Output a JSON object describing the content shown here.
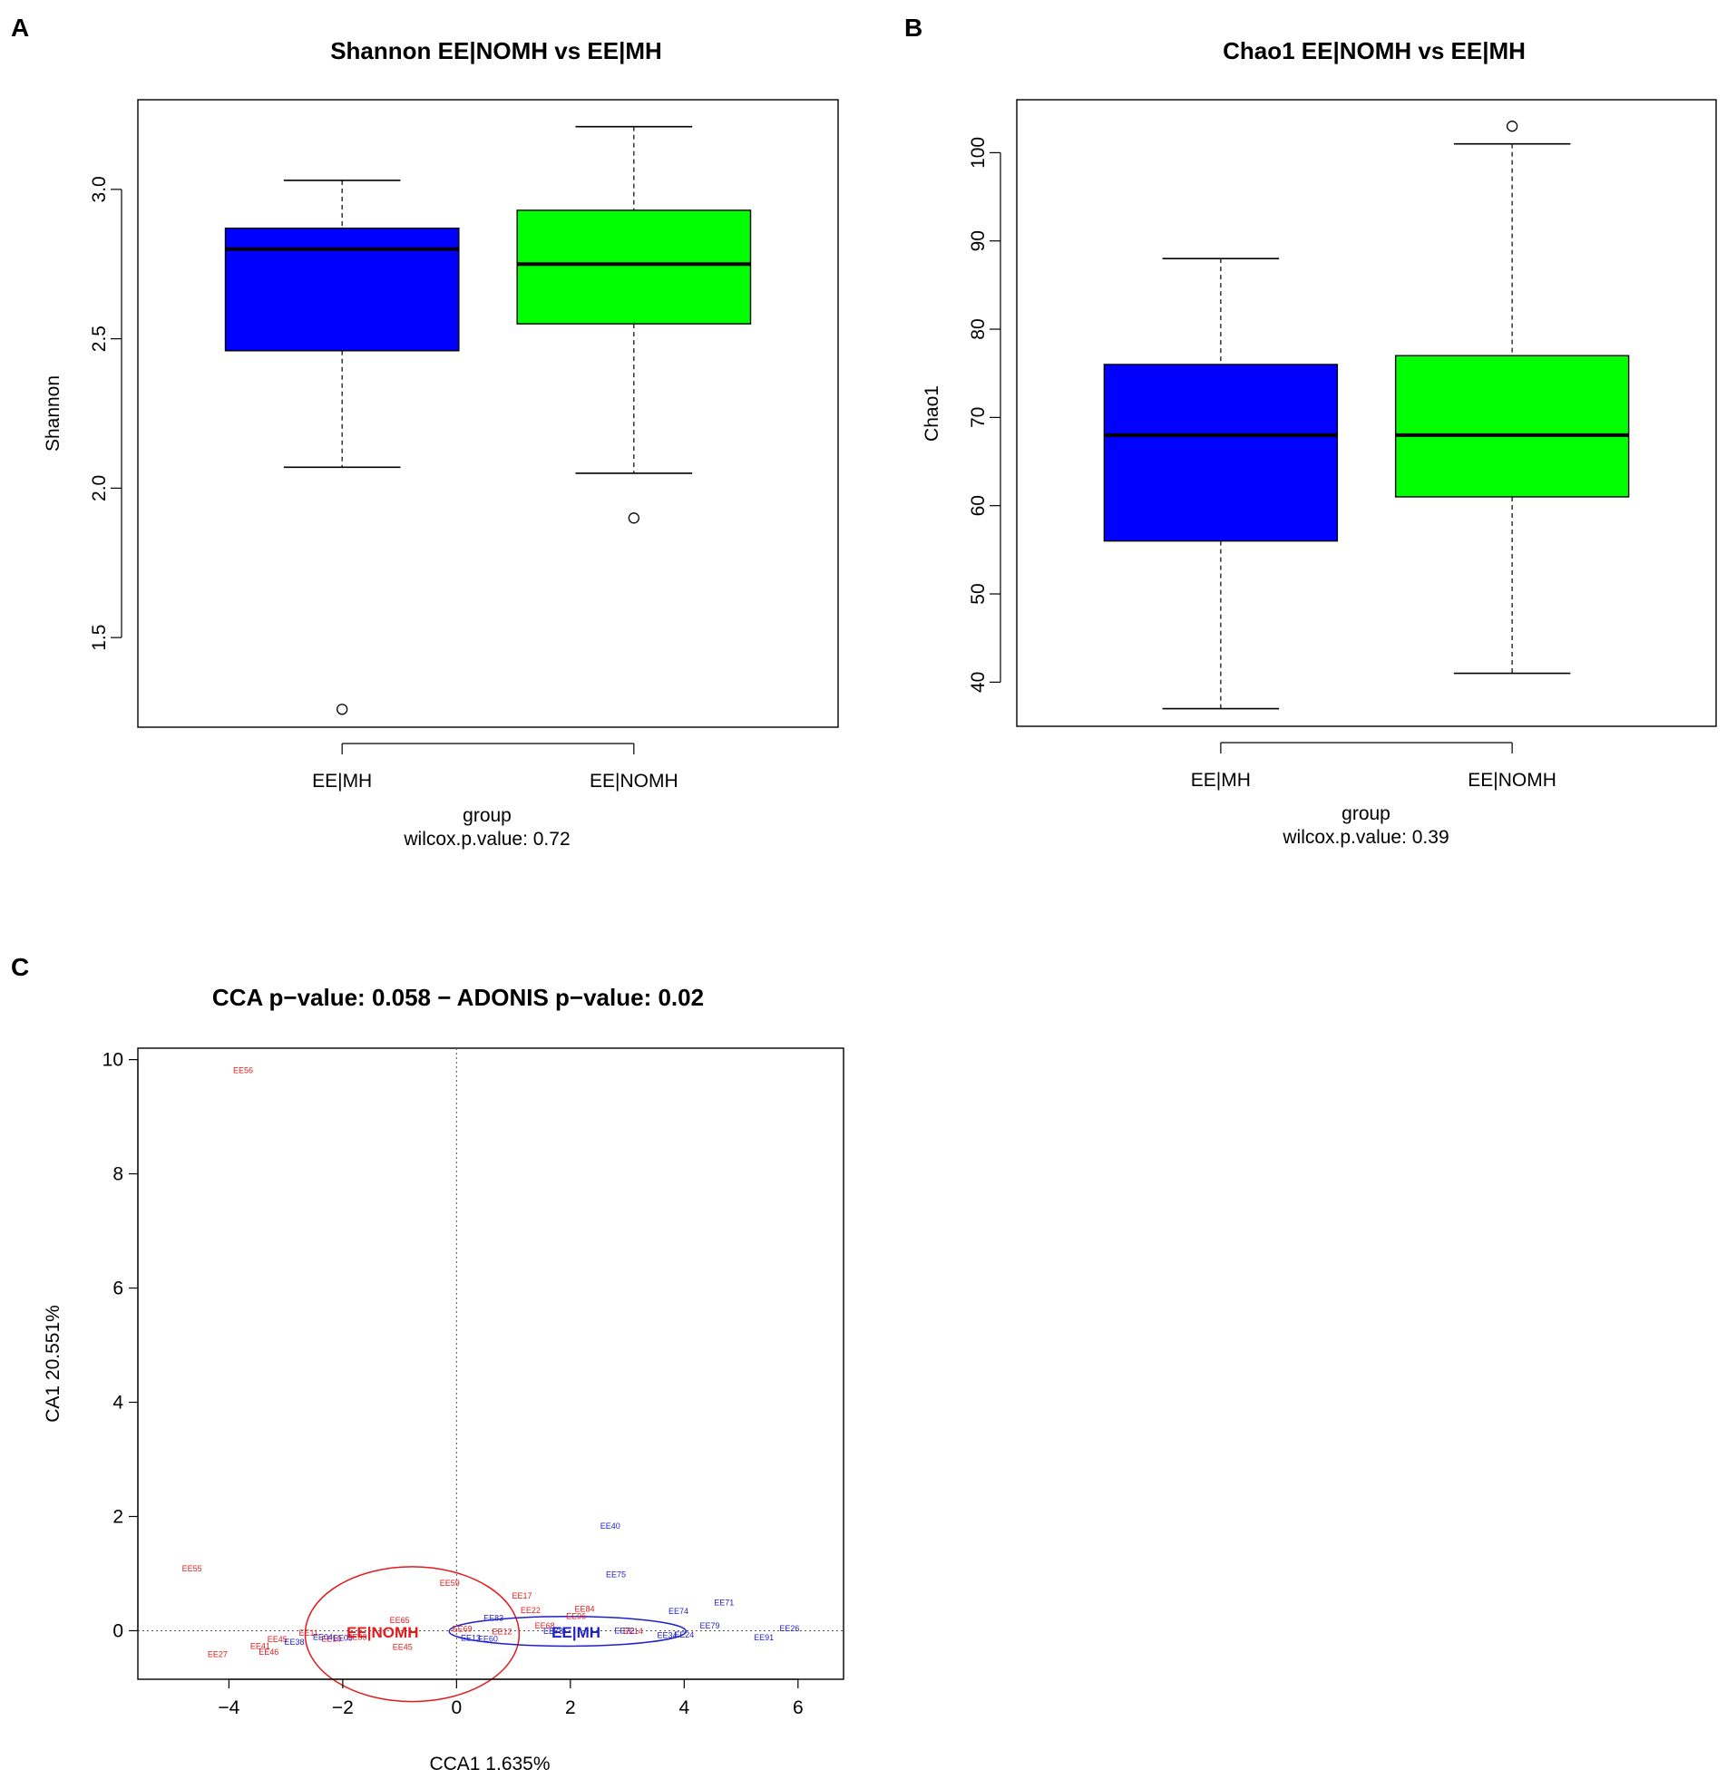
{
  "panels": {
    "a": "A",
    "b": "B",
    "c": "C"
  },
  "chart_data": [
    {
      "type": "boxplot",
      "title": "Shannon EE|NOMH vs EE|MH",
      "ylabel": "Shannon",
      "xlabel": "group",
      "subtitle": "wilcox.p.value: 0.72",
      "ylim": [
        1.2,
        3.3
      ],
      "yticks": [
        "1.5",
        "2.0",
        "2.5",
        "3.0"
      ],
      "categories": [
        "EE|MH",
        "EE|NOMH"
      ],
      "boxes": [
        {
          "name": "EE|MH",
          "color": "#0000ff",
          "min": 2.07,
          "q1": 2.46,
          "median": 2.8,
          "q3": 2.87,
          "max": 3.03,
          "outliers": [
            1.26
          ]
        },
        {
          "name": "EE|NOMH",
          "color": "#00ff00",
          "min": 2.05,
          "q1": 2.55,
          "median": 2.75,
          "q3": 2.93,
          "max": 3.21,
          "outliers": [
            1.9
          ]
        }
      ]
    },
    {
      "type": "boxplot",
      "title": "Chao1 EE|NOMH vs EE|MH",
      "ylabel": "Chao1",
      "xlabel": "group",
      "subtitle": "wilcox.p.value: 0.39",
      "ylim": [
        35,
        106
      ],
      "yticks": [
        "40",
        "50",
        "60",
        "70",
        "80",
        "90",
        "100"
      ],
      "categories": [
        "EE|MH",
        "EE|NOMH"
      ],
      "boxes": [
        {
          "name": "EE|MH",
          "color": "#0000ff",
          "min": 37,
          "q1": 56,
          "median": 68,
          "q3": 76,
          "max": 88,
          "outliers": []
        },
        {
          "name": "EE|NOMH",
          "color": "#00ff00",
          "min": 41,
          "q1": 61,
          "median": 68,
          "q3": 77,
          "max": 101,
          "outliers": [
            103
          ]
        }
      ]
    },
    {
      "type": "scatter",
      "title": "CCA p−value: 0.058 − ADONIS p−value: 0.02",
      "xlabel": "CCA1  1.635%",
      "ylabel": "CA1 20.551%",
      "xlim": [
        -5.6,
        6.8
      ],
      "ylim": [
        -0.85,
        10.2
      ],
      "xticks": [
        "−4",
        "−2",
        "0",
        "2",
        "4",
        "6"
      ],
      "yticks": [
        "0",
        "2",
        "4",
        "6",
        "8",
        "10"
      ],
      "groups": [
        {
          "name": "EE|NOMH",
          "color": "#e41a1c",
          "centroid": [
            -1.3,
            -0.05
          ],
          "ellipse": {
            "cx": -0.78,
            "cy": -0.06,
            "rx": 1.88,
            "ry": 1.18
          }
        },
        {
          "name": "EE|MH",
          "color": "#1f1fcc",
          "centroid": [
            2.1,
            -0.05
          ],
          "ellipse": {
            "cx": 1.95,
            "cy": -0.01,
            "rx": 2.08,
            "ry": 0.26
          }
        }
      ],
      "points": [
        {
          "label": "EE56",
          "x": -3.75,
          "y": 9.8,
          "group": 0
        },
        {
          "label": "EE55",
          "x": -4.65,
          "y": 1.08,
          "group": 0
        },
        {
          "label": "EE59",
          "x": -0.12,
          "y": 0.82,
          "group": 0
        },
        {
          "label": "EE17",
          "x": 1.15,
          "y": 0.6,
          "group": 0
        },
        {
          "label": "EE22",
          "x": 1.3,
          "y": 0.35,
          "group": 0
        },
        {
          "label": "EE84",
          "x": 2.25,
          "y": 0.37,
          "group": 0
        },
        {
          "label": "EE96",
          "x": 2.1,
          "y": 0.24,
          "group": 0
        },
        {
          "label": "EE65",
          "x": -1.0,
          "y": 0.17,
          "group": 0
        },
        {
          "label": "EE27",
          "x": -4.2,
          "y": -0.42,
          "group": 0
        },
        {
          "label": "EE41",
          "x": -3.45,
          "y": -0.28,
          "group": 0
        },
        {
          "label": "EE46",
          "x": -3.3,
          "y": -0.38,
          "group": 0
        },
        {
          "label": "EE45",
          "x": -3.15,
          "y": -0.16,
          "group": 0
        },
        {
          "label": "EE11",
          "x": -2.6,
          "y": -0.05,
          "group": 0
        },
        {
          "label": "EE10",
          "x": -2.2,
          "y": -0.15,
          "group": 0
        },
        {
          "label": "EE33",
          "x": -1.75,
          "y": -0.12,
          "group": 0
        },
        {
          "label": "EE45",
          "x": -0.95,
          "y": -0.3,
          "group": 0
        },
        {
          "label": "EE69",
          "x": 0.1,
          "y": 0.02,
          "group": 0
        },
        {
          "label": "EE12",
          "x": 0.8,
          "y": -0.03,
          "group": 0
        },
        {
          "label": "EE68",
          "x": 1.55,
          "y": 0.08,
          "group": 0
        },
        {
          "label": "EE14",
          "x": 3.1,
          "y": -0.02,
          "group": 0
        },
        {
          "label": "EE40",
          "x": 2.7,
          "y": 1.82,
          "group": 1
        },
        {
          "label": "EE75",
          "x": 2.8,
          "y": 0.97,
          "group": 1
        },
        {
          "label": "EE71",
          "x": 4.7,
          "y": 0.48,
          "group": 1
        },
        {
          "label": "EE74",
          "x": 3.9,
          "y": 0.33,
          "group": 1
        },
        {
          "label": "EE79",
          "x": 4.45,
          "y": 0.08,
          "group": 1
        },
        {
          "label": "EE26",
          "x": 5.85,
          "y": 0.03,
          "group": 1
        },
        {
          "label": "EE91",
          "x": 5.4,
          "y": -0.13,
          "group": 1
        },
        {
          "label": "EE24",
          "x": 4.0,
          "y": -0.08,
          "group": 1
        },
        {
          "label": "EE34",
          "x": 3.7,
          "y": -0.09,
          "group": 1
        },
        {
          "label": "EE72",
          "x": 2.95,
          "y": -0.01,
          "group": 1
        },
        {
          "label": "EE83",
          "x": 0.65,
          "y": 0.21,
          "group": 1
        },
        {
          "label": "EE78",
          "x": 1.7,
          "y": -0.02,
          "group": 1
        },
        {
          "label": "EE13",
          "x": 0.25,
          "y": -0.14,
          "group": 1
        },
        {
          "label": "EE60",
          "x": 0.55,
          "y": -0.15,
          "group": 1
        },
        {
          "label": "EE38",
          "x": -2.85,
          "y": -0.21,
          "group": 1
        },
        {
          "label": "EE04",
          "x": -2.35,
          "y": -0.12,
          "group": 1
        },
        {
          "label": "EE09",
          "x": -2.0,
          "y": -0.14,
          "group": 1
        }
      ]
    }
  ]
}
